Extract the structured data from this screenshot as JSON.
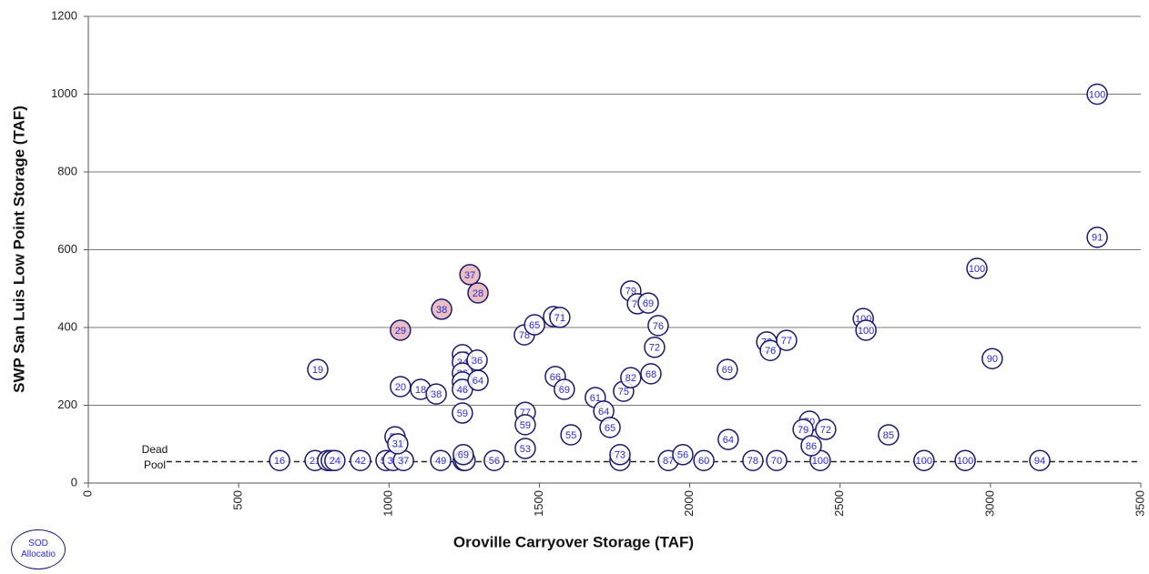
{
  "chart_data": {
    "type": "scatter",
    "x_label": "Oroville Carryover Storage (TAF)",
    "y_label": "SWP San Luis Low Point Storage (TAF)",
    "xlim": [
      0,
      3500
    ],
    "xticks": [
      0,
      500,
      1000,
      1500,
      2000,
      2500,
      3000,
      3500
    ],
    "ylim": [
      0,
      1200
    ],
    "yticks": [
      0,
      200,
      400,
      600,
      800,
      1000,
      1200
    ],
    "grid": true,
    "annotation": "Dead Pool",
    "reference_line": {
      "y": 55,
      "x_start": 260
    },
    "series": [
      {
        "name": "SOD Allocatio",
        "color": "#1a1a6e",
        "x": [
          636,
          754,
          796,
          808,
          820,
          905,
          990,
          1014,
          1048,
          1172,
          1247,
          1253,
          1350,
          1768,
          1929,
          2047,
          2210,
          2289,
          2434,
          2779,
          2916,
          3164,
          1247,
          1768,
          1977,
          763,
          1038,
          1105,
          1157,
          1244,
          1244,
          1244,
          1244,
          1244,
          1244,
          1293,
          1296,
          1020,
          1029,
          1450,
          1484,
          1547,
          1568,
          1553,
          1583,
          1453,
          1453,
          1453,
          1605,
          1686,
          1714,
          1735,
          1780,
          1804,
          1826,
          1862,
          1895,
          1883,
          1804,
          1871,
          2125,
          2128,
          2256,
          2268,
          2322,
          2398,
          2377,
          2452,
          2404,
          2661,
          2577,
          2586,
          2955,
          3006,
          3355,
          3355
        ],
        "values": [
          58,
          58,
          58,
          58,
          58,
          58,
          58,
          58,
          58,
          58,
          58,
          58,
          58,
          58,
          58,
          58,
          58,
          58,
          58,
          58,
          58,
          58,
          73,
          73,
          73,
          292,
          248,
          241,
          229,
          330,
          311,
          283,
          260,
          241,
          180,
          316,
          264,
          119,
          101,
          381,
          407,
          428,
          426,
          274,
          241,
          182,
          150,
          89,
          124,
          220,
          185,
          143,
          236,
          494,
          461,
          463,
          405,
          349,
          271,
          281,
          292,
          112,
          363,
          341,
          367,
          159,
          138,
          138,
          96,
          124,
          423,
          393,
          552,
          320,
          632,
          1000
        ],
        "labels": [
          16,
          21,
          24,
          24,
          24,
          42,
          50,
          35,
          37,
          49,
          58,
          53,
          56,
          64,
          87,
          60,
          78,
          70,
          100,
          100,
          100,
          94,
          69,
          73,
          56,
          19,
          20,
          18,
          38,
          37,
          34,
          36,
          31,
          46,
          59,
          36,
          64,
          51,
          31,
          78,
          65,
          74,
          71,
          66,
          69,
          77,
          59,
          53,
          55,
          61,
          64,
          65,
          75,
          79,
          70,
          69,
          76,
          72,
          82,
          68,
          69,
          64,
          78,
          76,
          77,
          70,
          79,
          72,
          86,
          85,
          100,
          100,
          100,
          90,
          91,
          100
        ]
      },
      {
        "color": "#1a1a6e",
        "fill": "#e6b3b8",
        "x": [
          1038,
          1175,
          1269,
          1296
        ],
        "values": [
          393,
          447,
          536,
          489
        ],
        "labels": [
          29,
          38,
          37,
          28
        ]
      }
    ]
  }
}
